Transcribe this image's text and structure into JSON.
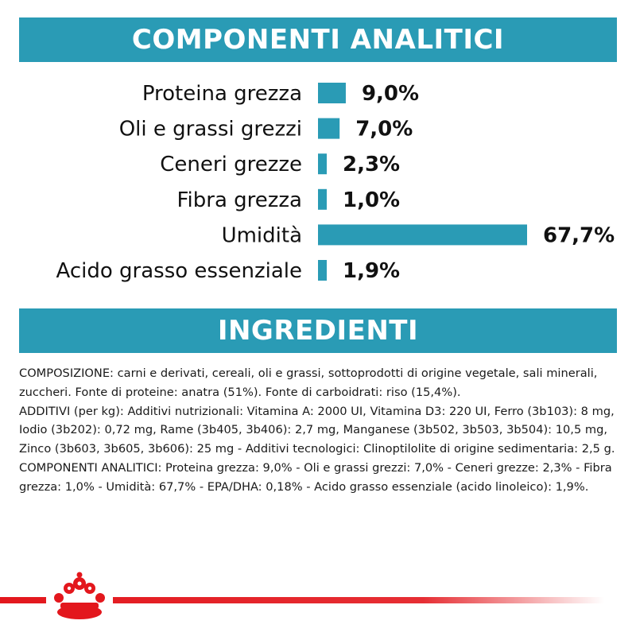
{
  "header": {
    "analytics_title": "COMPONENTI ANALITICI"
  },
  "chart_data": {
    "type": "bar",
    "orientation": "horizontal",
    "categories": [
      "Proteina grezza",
      "Oli e grassi grezzi",
      "Ceneri grezze",
      "Fibra grezza",
      "Umidità",
      "Acido grasso essenziale"
    ],
    "values": [
      9.0,
      7.0,
      2.3,
      1.0,
      67.7,
      1.9
    ],
    "value_labels": [
      "9,0%",
      "7,0%",
      "2,3%",
      "1,0%",
      "67,7%",
      "1,9%"
    ],
    "bar_color": "#2a9bb5",
    "xlim": [
      0,
      67.7
    ],
    "grid": false,
    "legend": false
  },
  "ingredients": {
    "title": "INGREDIENTI",
    "paragraphs": [
      "COMPOSIZIONE: carni e derivati, cereali, oli e grassi, sottoprodotti di origine vegetale, sali minerali, zuccheri. Fonte di proteine: anatra (51%). Fonte di carboidrati: riso (15,4%).",
      "ADDITIVI (per kg): Additivi nutrizionali: Vitamina A: 2000 UI, Vitamina D3: 220 UI, Ferro (3b103): 8 mg, Iodio (3b202): 0,72 mg, Rame (3b405, 3b406): 2,7 mg, Manganese (3b502, 3b503, 3b504): 10,5 mg, Zinco (3b603, 3b605, 3b606): 25 mg - Additivi tecnologici: Clinoptilolite di origine sedimentaria: 2,5 g.",
      "COMPONENTI ANALITICI: Proteina grezza: 9,0% - Oli e grassi grezzi: 7,0% - Ceneri grezze: 2,3% - Fibra grezza: 1,0% - Umidità: 67,7% - EPA/DHA: 0,18% - Acido grasso essenziale (acido linoleico): 1,9%."
    ]
  },
  "footer": {
    "logo_icon": "royal-canin-crown-icon",
    "line_color": "#e3171d"
  }
}
